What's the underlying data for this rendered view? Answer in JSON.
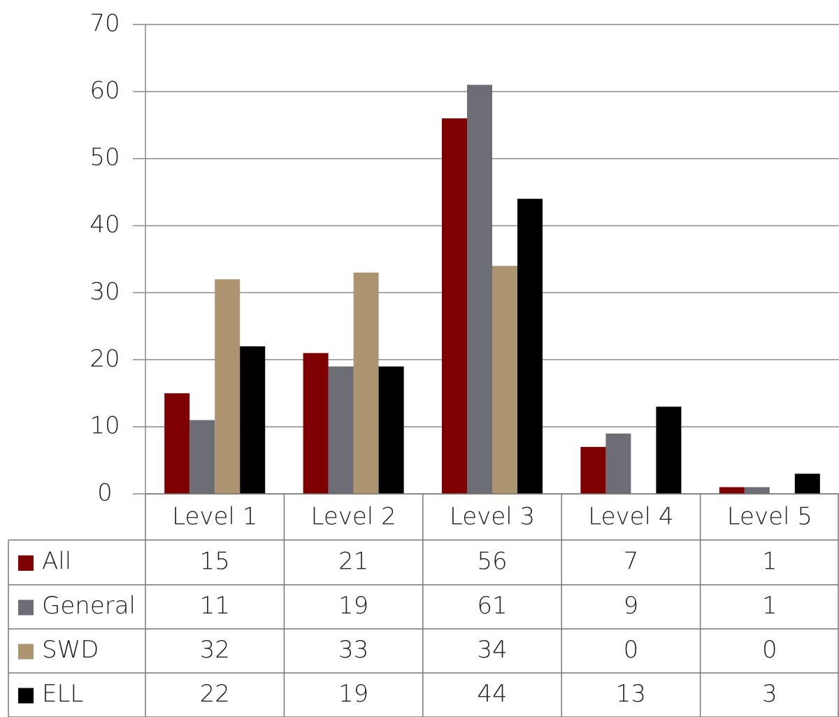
{
  "chart_data": {
    "type": "bar",
    "categories": [
      "Level 1",
      "Level 2",
      "Level 3",
      "Level 4",
      "Level 5"
    ],
    "series": [
      {
        "name": "All",
        "color": "#7f0000",
        "values": [
          15,
          21,
          56,
          7,
          1
        ]
      },
      {
        "name": "General",
        "color": "#6d6e75",
        "values": [
          11,
          19,
          61,
          9,
          1
        ]
      },
      {
        "name": "SWD",
        "color": "#ad9470",
        "values": [
          32,
          33,
          34,
          0,
          0
        ]
      },
      {
        "name": "ELL",
        "color": "#000000",
        "values": [
          22,
          19,
          44,
          13,
          3
        ]
      }
    ],
    "ylim": [
      0,
      70
    ],
    "yticks": [
      0,
      10,
      20,
      30,
      40,
      50,
      60,
      70
    ],
    "grid": true
  }
}
